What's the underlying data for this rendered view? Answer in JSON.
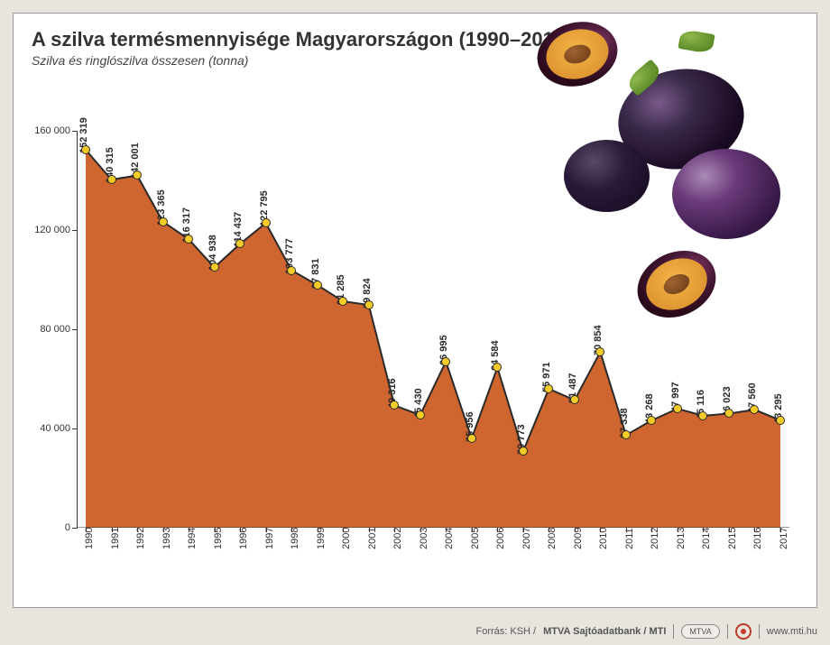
{
  "title": "A szilva termésmennyisége Magyarországon (1990–2017)",
  "subtitle": "Szilva és ringlószilva összesen (tonna)",
  "source_prefix": "Forrás: KSH / ",
  "source_bold": "MTVA Sajtóadatbank / MTI",
  "footer_badge": "MTVA",
  "footer_url": "www.mti.hu",
  "chart": {
    "type": "area-line",
    "years": [
      1990,
      1991,
      1992,
      1993,
      1994,
      1995,
      1996,
      1997,
      1998,
      1999,
      2000,
      2001,
      2002,
      2003,
      2004,
      2005,
      2006,
      2007,
      2008,
      2009,
      2010,
      2011,
      2012,
      2013,
      2014,
      2015,
      2016,
      2017
    ],
    "values": [
      152319,
      140315,
      142001,
      123365,
      116317,
      104938,
      114437,
      122795,
      103777,
      97831,
      91285,
      89824,
      49316,
      45430,
      66995,
      35956,
      64584,
      30773,
      55971,
      51487,
      70854,
      37338,
      43268,
      47997,
      45116,
      46023,
      47560,
      43295
    ],
    "value_labels": [
      "152 319",
      "140 315",
      "142 001",
      "123 365",
      "116 317",
      "104 938",
      "114 437",
      "122 795",
      "103 777",
      "97 831",
      "91 285",
      "89 824",
      "49 316",
      "45 430",
      "66 995",
      "35 956",
      "64 584",
      "30 773",
      "55 971",
      "51 487",
      "70 854",
      "37 338",
      "43 268",
      "47 997",
      "45 116",
      "46 023",
      "47 560",
      "43 295"
    ],
    "ymin": 0,
    "ymax": 160000,
    "yticks": [
      0,
      40000,
      80000,
      120000,
      160000
    ],
    "ytick_labels": [
      "0",
      "40 000",
      "80 000",
      "120 000",
      "160 000"
    ],
    "area_fill": "#d0662f",
    "line_color": "#2a2a2a",
    "line_width": 2,
    "marker_fill": "#f5cc27",
    "marker_stroke": "#2a2a2a",
    "marker_radius": 5,
    "background": "#ffffff",
    "tick_color": "#333333",
    "label_fontsize": 11,
    "title_fontsize": 22
  }
}
